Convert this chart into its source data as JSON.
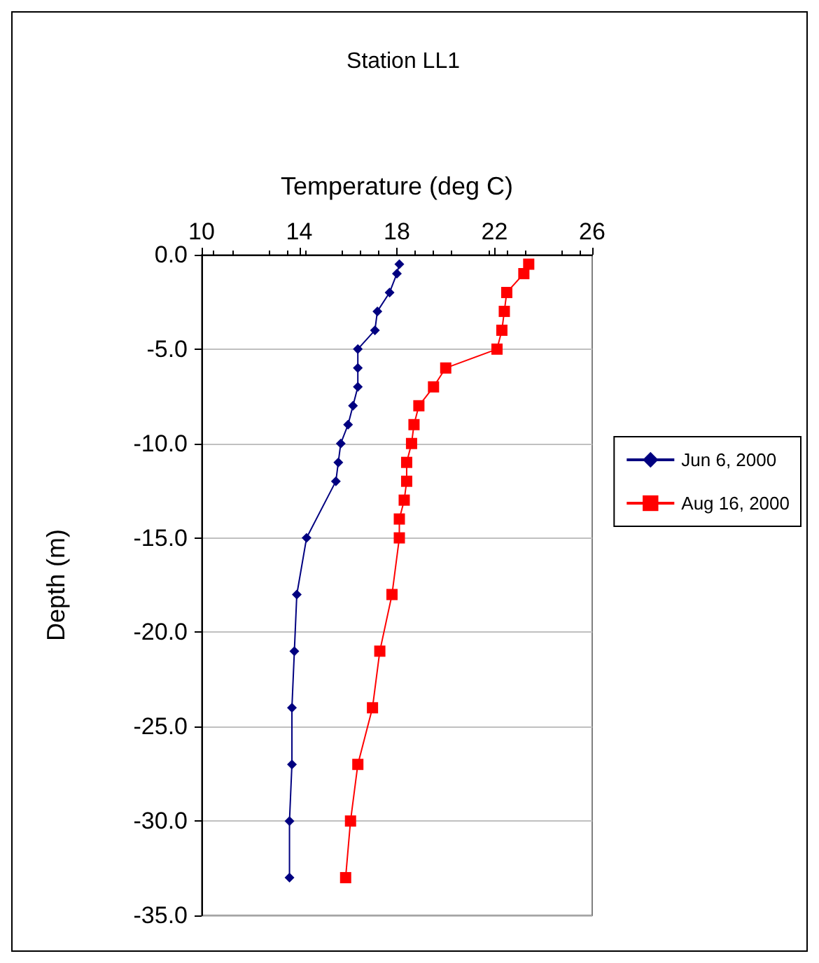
{
  "chart_data": {
    "type": "line",
    "title": "Station LL1",
    "xlabel": "Temperature (deg C)",
    "ylabel": "Depth (m)",
    "xlim": [
      10,
      26
    ],
    "xticks": [
      10,
      14,
      18,
      22,
      26
    ],
    "ylim": [
      -35,
      0
    ],
    "yticks": [
      {
        "value": -35,
        "label": "-35.0"
      },
      {
        "value": -30,
        "label": "-30.0"
      },
      {
        "value": -25,
        "label": "-25.0"
      },
      {
        "value": -20,
        "label": "-20.0"
      },
      {
        "value": -15,
        "label": "-15.0"
      },
      {
        "value": -10,
        "label": "-10.0"
      },
      {
        "value": -5,
        "label": "-5.0"
      },
      {
        "value": 0,
        "label": "0.0"
      }
    ],
    "grid": "y",
    "legend": "right",
    "line_style": "solid",
    "series": [
      {
        "name": "Jun 6, 2000",
        "color": "#000080",
        "marker": "diamond",
        "x": [
          18.1,
          18.0,
          17.7,
          17.2,
          17.1,
          16.4,
          16.4,
          16.4,
          16.2,
          16.0,
          15.7,
          15.6,
          15.5,
          14.3,
          13.9,
          13.8,
          13.7,
          13.7,
          13.6,
          13.6
        ],
        "values": [
          -0.5,
          -1,
          -2,
          -3,
          -4,
          -5,
          -6,
          -7,
          -8,
          -9,
          -10,
          -11,
          -12,
          -15,
          -18,
          -21,
          -24,
          -27,
          -30,
          -33
        ]
      },
      {
        "name": "Aug 16, 2000",
        "color": "#ff0000",
        "marker": "square",
        "x": [
          23.4,
          23.2,
          22.5,
          22.4,
          22.3,
          22.1,
          20.0,
          19.5,
          18.9,
          18.7,
          18.6,
          18.4,
          18.4,
          18.3,
          18.1,
          18.1,
          17.8,
          17.3,
          17.0,
          16.4,
          16.1,
          15.9
        ],
        "values": [
          -0.5,
          -1,
          -2,
          -3,
          -4,
          -5,
          -6,
          -7,
          -8,
          -9,
          -10,
          -11,
          -12,
          -13,
          -14,
          -15,
          -18,
          -21,
          -24,
          -27,
          -30,
          -33
        ]
      }
    ]
  }
}
